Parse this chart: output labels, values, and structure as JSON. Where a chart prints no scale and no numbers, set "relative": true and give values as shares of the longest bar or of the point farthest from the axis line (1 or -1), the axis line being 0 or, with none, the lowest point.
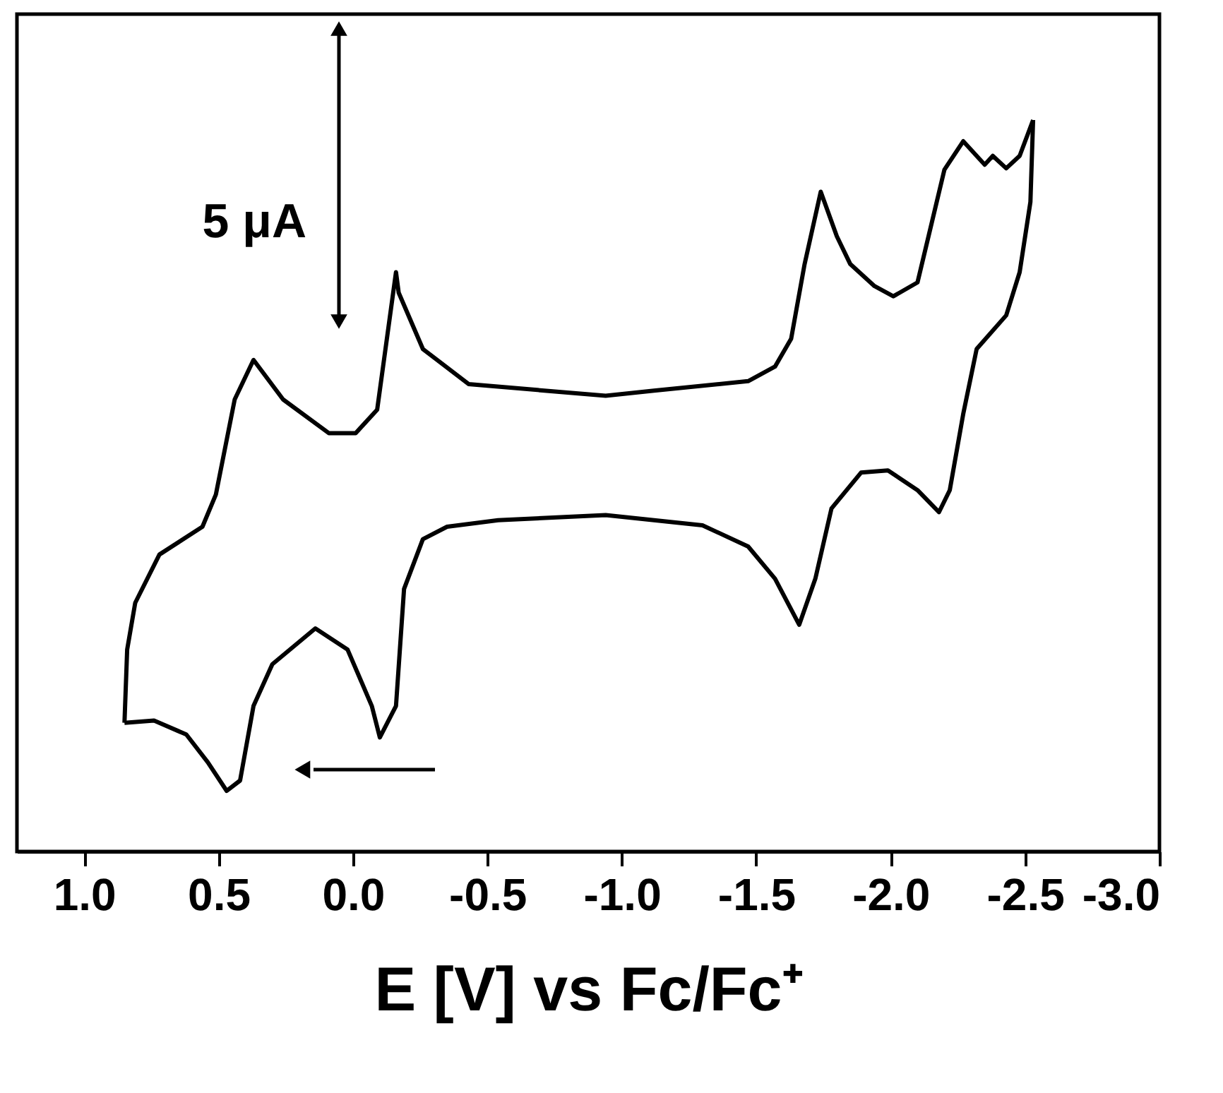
{
  "chart_data": {
    "type": "line",
    "relative": true,
    "xlabel": "E [V] vs Fc/Fc⁺",
    "annotations": [
      "5 μA"
    ],
    "xlim": [
      1.25,
      -3.0
    ],
    "xticks": [
      {
        "value": 1.0,
        "label": "1.0"
      },
      {
        "value": 0.5,
        "label": "0.5"
      },
      {
        "value": 0.0,
        "label": "0.0"
      },
      {
        "value": -0.5,
        "label": "-0.5"
      },
      {
        "value": -1.0,
        "label": "-1.0"
      },
      {
        "value": -1.5,
        "label": "-1.5"
      },
      {
        "value": -2.0,
        "label": "-2.0"
      },
      {
        "value": -2.5,
        "label": "-2.5"
      },
      {
        "value": -3.0,
        "label": "-3.0"
      }
    ],
    "tick_labels": "x",
    "grid": false,
    "marker": "none",
    "line_style": "solid",
    "series": [
      {
        "color": "#000000",
        "x": [
          -2.53,
          -2.48,
          -2.43,
          -2.38,
          -2.35,
          -2.27,
          -2.2,
          -2.15,
          -2.1,
          -2.01,
          -1.94,
          -1.85,
          -1.8,
          -1.74,
          -1.68,
          -1.63,
          -1.57,
          -1.47,
          -1.12,
          -0.94,
          -0.43,
          -0.26,
          -0.17,
          -0.16,
          -0.09,
          -0.01,
          0.09,
          0.26,
          0.37,
          0.44,
          0.51,
          0.56,
          0.72,
          0.81,
          0.84,
          0.85
        ],
        "values": [
          1.0,
          0.951,
          0.934,
          0.951,
          0.939,
          0.971,
          0.932,
          0.855,
          0.778,
          0.759,
          0.773,
          0.803,
          0.841,
          0.902,
          0.803,
          0.701,
          0.663,
          0.643,
          0.63,
          0.623,
          0.639,
          0.687,
          0.764,
          0.792,
          0.604,
          0.572,
          0.572,
          0.618,
          0.672,
          0.618,
          0.488,
          0.444,
          0.406,
          0.34,
          0.276,
          0.176
        ]
      },
      {
        "color": "#000000",
        "x": [
          0.85,
          0.74,
          0.62,
          0.54,
          0.47,
          0.42,
          0.37,
          0.3,
          0.14,
          0.02,
          -0.07,
          -0.1,
          -0.16,
          -0.19,
          -0.26,
          -0.35,
          -0.54,
          -0.94,
          -1.3,
          -1.47,
          -1.57,
          -1.66,
          -1.72,
          -1.78,
          -1.89,
          -1.99,
          -2.1,
          -2.18,
          -2.22,
          -2.27,
          -2.32,
          -2.43,
          -2.48,
          -2.52,
          -2.53
        ],
        "values": [
          0.176,
          0.179,
          0.16,
          0.122,
          0.083,
          0.097,
          0.199,
          0.256,
          0.305,
          0.276,
          0.199,
          0.156,
          0.199,
          0.359,
          0.427,
          0.444,
          0.453,
          0.46,
          0.446,
          0.417,
          0.373,
          0.31,
          0.373,
          0.469,
          0.518,
          0.521,
          0.494,
          0.464,
          0.494,
          0.598,
          0.687,
          0.733,
          0.792,
          0.888,
          1.0
        ]
      }
    ]
  }
}
